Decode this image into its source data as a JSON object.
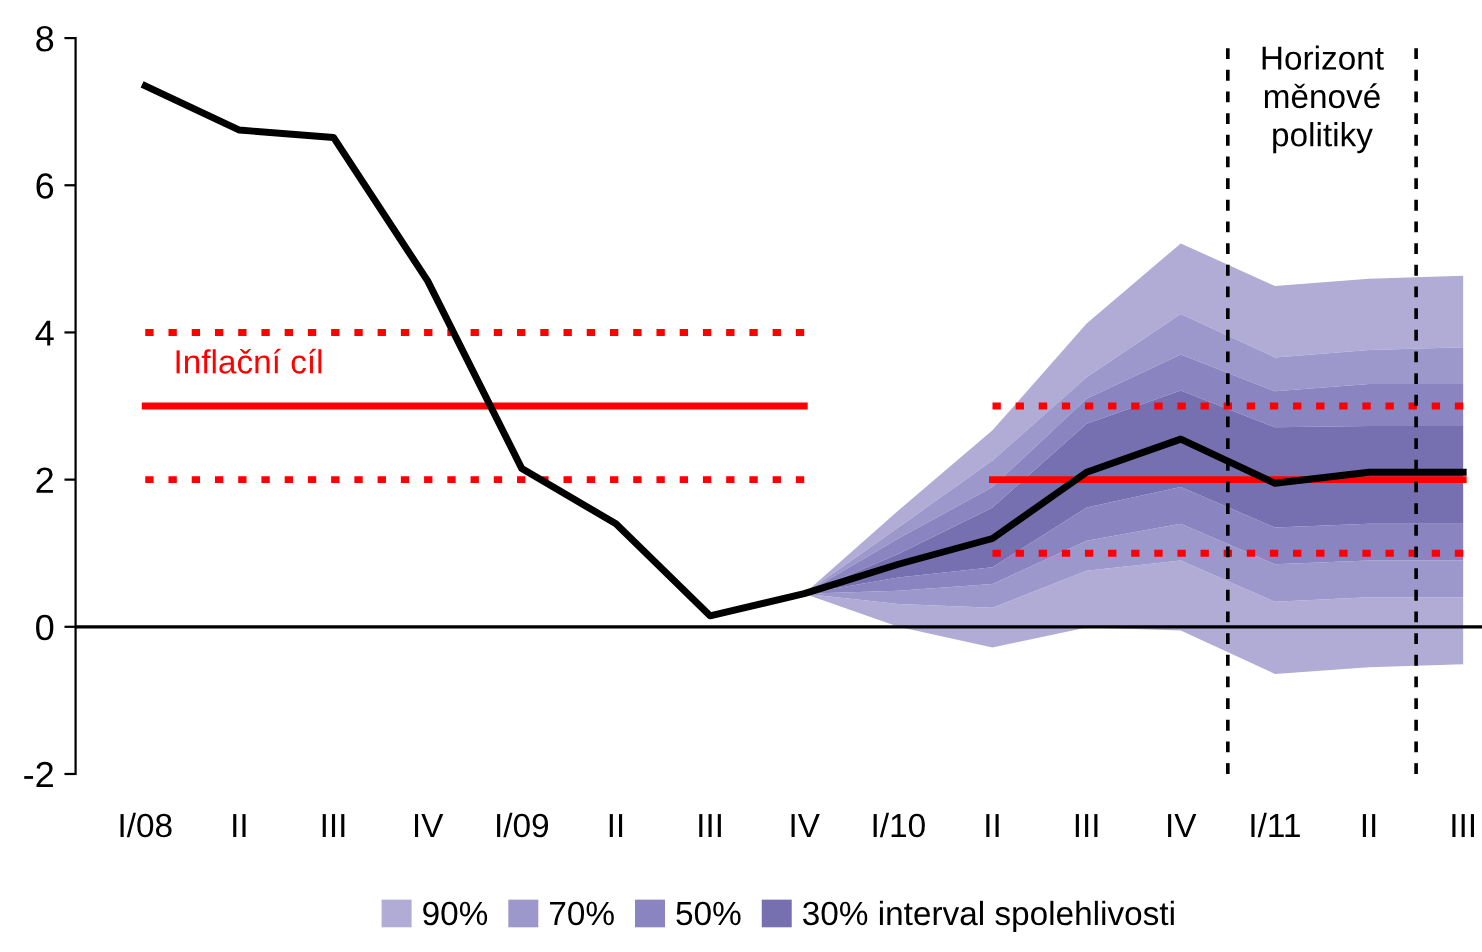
{
  "chart_data": {
    "type": "line",
    "categories": [
      "I/08",
      "II",
      "III",
      "IV",
      "I/09",
      "II",
      "III",
      "IV",
      "I/10",
      "II",
      "III",
      "IV",
      "I/11",
      "II",
      "III"
    ],
    "ylim": [
      -2,
      8
    ],
    "yticks": [
      -2,
      0,
      2,
      4,
      6,
      8
    ],
    "series": [
      {
        "name": "90%",
        "color": "#b0acd6",
        "values": [
          null,
          null,
          null,
          null,
          null,
          null,
          null,
          null,
          null,
          null,
          null,
          null,
          null,
          null,
          null
        ],
        "lower": [
          null,
          null,
          null,
          null,
          null,
          null,
          null,
          0.45,
          0.0,
          -0.28,
          -0.01,
          -0.05,
          -0.64,
          -0.55,
          -0.51
        ],
        "upper": [
          null,
          null,
          null,
          null,
          null,
          null,
          null,
          0.45,
          1.58,
          2.67,
          4.12,
          5.21,
          4.63,
          4.73,
          4.77
        ]
      },
      {
        "name": "70%",
        "color": "#9d98cb",
        "values": [
          null,
          null,
          null,
          null,
          null,
          null,
          null,
          null,
          null,
          null,
          null,
          null,
          null,
          null,
          null
        ],
        "lower": [
          null,
          null,
          null,
          null,
          null,
          null,
          null,
          0.45,
          0.31,
          0.26,
          0.76,
          0.9,
          0.34,
          0.4,
          0.4
        ],
        "upper": [
          null,
          null,
          null,
          null,
          null,
          null,
          null,
          0.45,
          1.35,
          2.26,
          3.39,
          4.25,
          3.66,
          3.76,
          3.8
        ]
      },
      {
        "name": "50%",
        "color": "#8a84c0",
        "values": [
          null,
          null,
          null,
          null,
          null,
          null,
          null,
          null,
          null,
          null,
          null,
          null,
          null,
          null,
          null
        ],
        "lower": [
          null,
          null,
          null,
          null,
          null,
          null,
          null,
          0.45,
          0.49,
          0.58,
          1.17,
          1.4,
          0.85,
          0.9,
          0.9
        ],
        "upper": [
          null,
          null,
          null,
          null,
          null,
          null,
          null,
          0.45,
          1.2,
          1.9,
          3.1,
          3.7,
          3.2,
          3.3,
          3.3
        ]
      },
      {
        "name": "30% interval spolehlivosti",
        "color": "#7670b0",
        "values": [
          null,
          null,
          null,
          null,
          null,
          null,
          null,
          null,
          null,
          null,
          null,
          null,
          null,
          null,
          null
        ],
        "lower": [
          null,
          null,
          null,
          null,
          null,
          null,
          null,
          0.45,
          0.67,
          0.81,
          1.62,
          1.9,
          1.35,
          1.4,
          1.4
        ],
        "upper": [
          null,
          null,
          null,
          null,
          null,
          null,
          null,
          0.45,
          0.99,
          1.62,
          2.76,
          3.21,
          2.71,
          2.73,
          2.73
        ]
      },
      {
        "type": "line",
        "name": "Inflační cíl",
        "color": "#ff0000",
        "line_style": "solid",
        "values": [
          3,
          3,
          3,
          3,
          3,
          3,
          3,
          3,
          null,
          2,
          2,
          2,
          2,
          2,
          2
        ]
      },
      {
        "type": "line",
        "color": "#ff0000",
        "line_style": "dotted",
        "values": [
          4,
          4,
          4,
          4,
          4,
          4,
          4,
          4,
          null,
          3,
          3,
          3,
          3,
          3,
          3
        ]
      },
      {
        "type": "line",
        "color": "#ff0000",
        "line_style": "dotted",
        "values": [
          2,
          2,
          2,
          2,
          2,
          2,
          2,
          2,
          null,
          1,
          1,
          1,
          1,
          1,
          1
        ]
      },
      {
        "type": "line",
        "color": "#000000",
        "line_style": "solid",
        "values": [
          7.35,
          6.75,
          6.65,
          4.7,
          2.15,
          1.4,
          0.15,
          0.45,
          0.85,
          1.2,
          2.1,
          2.55,
          1.95,
          2.1,
          2.1
        ]
      }
    ],
    "ref_lines": [
      {
        "axis": "y",
        "value": 0,
        "color": "#000000",
        "line_style": "solid"
      }
    ],
    "annotations": [
      "Horizont\nměnové\npolitiky"
    ],
    "legend": "bottom",
    "grid": false
  }
}
